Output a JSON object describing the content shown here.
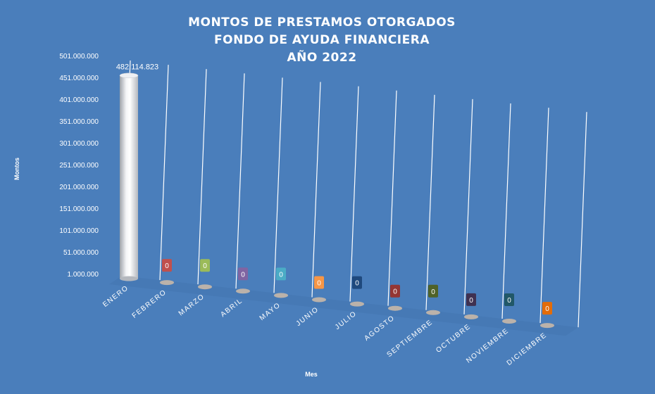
{
  "chart_data": {
    "type": "bar",
    "title_lines": [
      "MONTOS DE PRESTAMOS  OTORGADOS",
      "FONDO DE AYUDA FINANCIERA",
      "AÑO  2022"
    ],
    "xlabel": "Mes",
    "ylabel": "Montos",
    "ylim": [
      1000000,
      501000000
    ],
    "yticks": [
      "501.000.000",
      "451.000.000",
      "401.000.000",
      "351.000.000",
      "301.000.000",
      "251.000.000",
      "201.000.000",
      "151.000.000",
      "101.000.000",
      "51.000.000",
      "1.000.000"
    ],
    "categories": [
      "ENERO",
      "FEBRERO",
      "MARZO",
      "ABRIL",
      "MAYO",
      "JUNIO",
      "JULIO",
      "AGOSTO",
      "SEPTIEMBRE",
      "OCTUBRE",
      "NOVIEMBRE",
      "DICIEMBRE"
    ],
    "values": [
      482114823,
      0,
      0,
      0,
      0,
      0,
      0,
      0,
      0,
      0,
      0,
      0
    ],
    "value_labels": [
      "482.114.823",
      "0",
      "0",
      "0",
      "0",
      "0",
      "0",
      "0",
      "0",
      "0",
      "0",
      "0"
    ],
    "label_colors": [
      "#ffffff",
      "#c0504d",
      "#9bbb59",
      "#8064a2",
      "#4bacc6",
      "#f79646",
      "#1f497d",
      "#943634",
      "#4f6228",
      "#3f3151",
      "#215868",
      "#e36c09"
    ],
    "legend": "none",
    "grid": true,
    "style": "3d-cylinder"
  }
}
